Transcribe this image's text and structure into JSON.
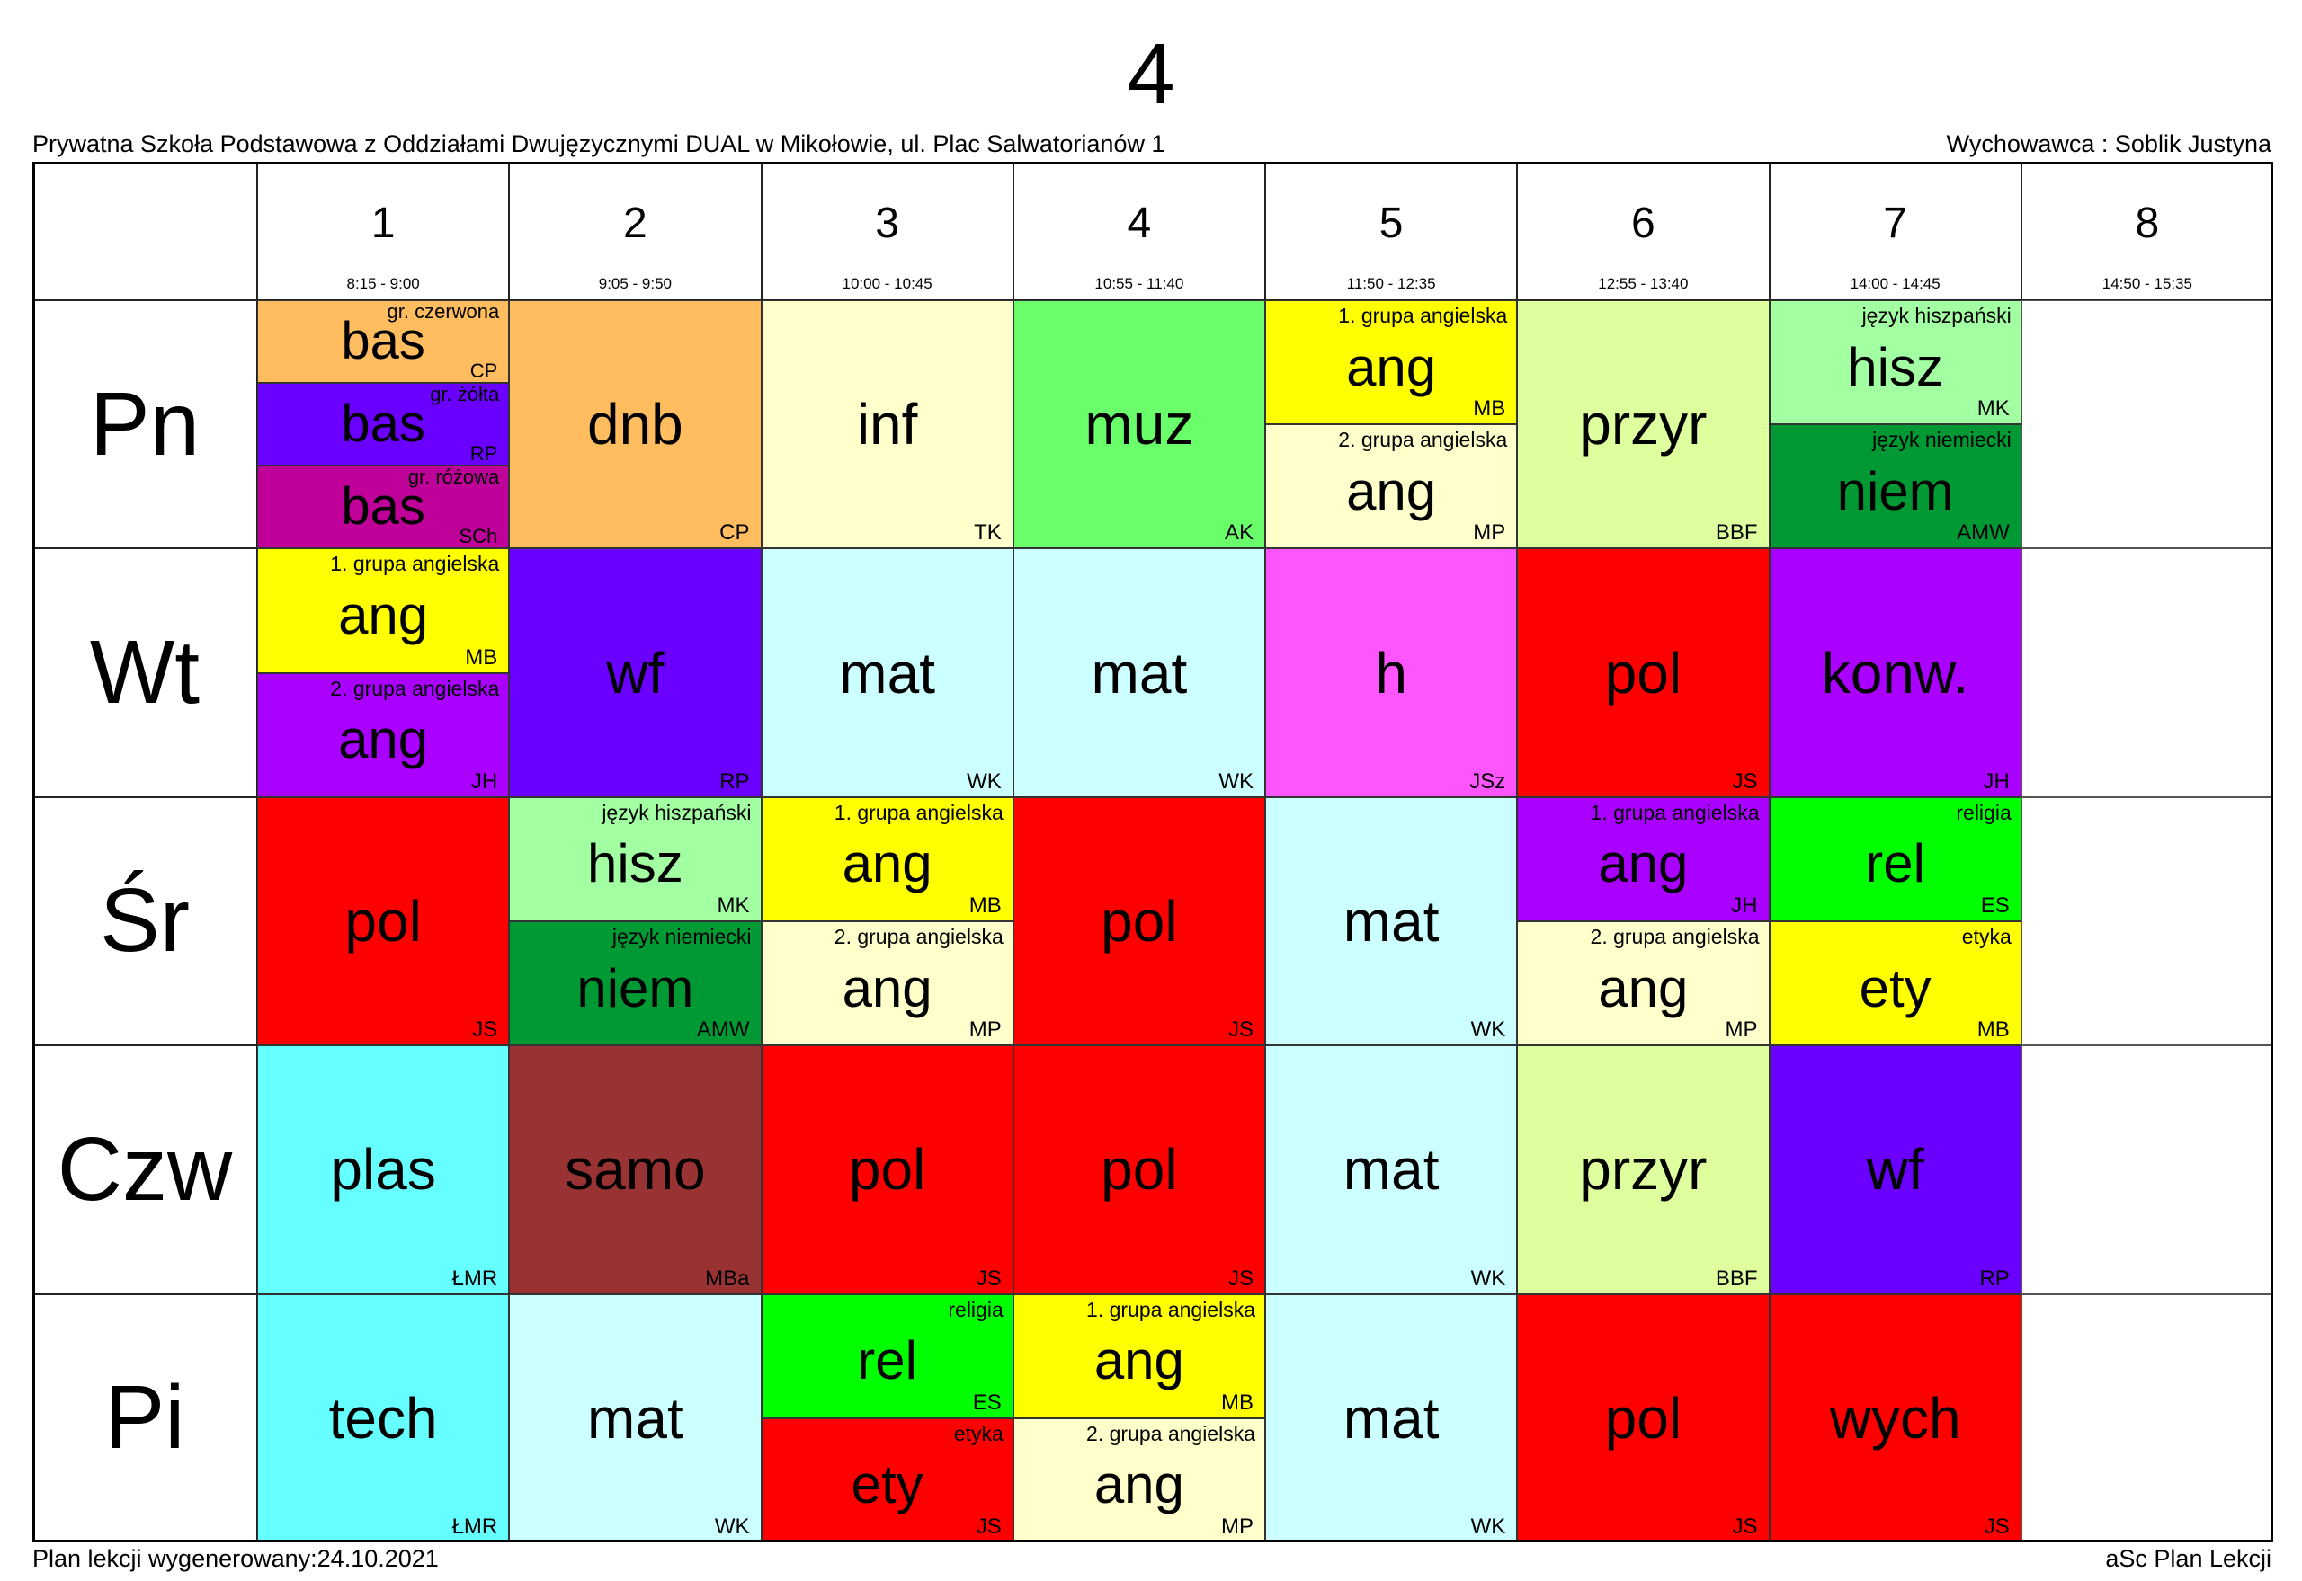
{
  "title": "4",
  "school": "Prywatna Szkoła Podstawowa z Oddziałami Dwujęzycznymi DUAL w Mikołowie, ul. Plac Salwatorianów 1",
  "tutor": "Wychowawca : Soblik Justyna",
  "footer_left": "Plan lekcji wygenerowany:24.10.2021",
  "footer_right": "aSc Plan Lekcji",
  "periods": [
    {
      "num": "1",
      "time": "8:15 - 9:00"
    },
    {
      "num": "2",
      "time": "9:05 - 9:50"
    },
    {
      "num": "3",
      "time": "10:00 - 10:45"
    },
    {
      "num": "4",
      "time": "10:55 - 11:40"
    },
    {
      "num": "5",
      "time": "11:50 - 12:35"
    },
    {
      "num": "6",
      "time": "12:55 - 13:40"
    },
    {
      "num": "7",
      "time": "14:00 - 14:45"
    },
    {
      "num": "8",
      "time": "14:50 - 15:35"
    }
  ],
  "days": [
    {
      "name": "Pn",
      "cells": [
        [
          {
            "subject": "bas",
            "teacher": "CP",
            "group": "gr. czerwona",
            "color": "#FFBD5F"
          },
          {
            "subject": "bas",
            "teacher": "RP",
            "group": "gr. żółta",
            "color": "#6A00FF"
          },
          {
            "subject": "bas",
            "teacher": "SCh",
            "group": "gr. różowa",
            "color": "#BF0099"
          }
        ],
        [
          {
            "subject": "dnb",
            "teacher": "CP",
            "color": "#FFBD5F"
          }
        ],
        [
          {
            "subject": "inf",
            "teacher": "TK",
            "color": "#FFFFCC"
          }
        ],
        [
          {
            "subject": "muz",
            "teacher": "AK",
            "color": "#6AFF6A"
          }
        ],
        [
          {
            "subject": "ang",
            "teacher": "MB",
            "group": "1. grupa angielska",
            "color": "#FFFF00"
          },
          {
            "subject": "ang",
            "teacher": "MP",
            "group": "2. grupa angielska",
            "color": "#FFFFCC"
          }
        ],
        [
          {
            "subject": "przyr",
            "teacher": "BBF",
            "color": "#DEFF9E"
          }
        ],
        [
          {
            "subject": "hisz",
            "teacher": "MK",
            "group": "język hiszpański",
            "color": "#A2FFA2"
          },
          {
            "subject": "niem",
            "teacher": "AMW",
            "group": "język niemiecki",
            "color": "#009933"
          }
        ],
        []
      ]
    },
    {
      "name": "Wt",
      "cells": [
        [
          {
            "subject": "ang",
            "teacher": "MB",
            "group": "1. grupa angielska",
            "color": "#FFFF00"
          },
          {
            "subject": "ang",
            "teacher": "JH",
            "group": "2. grupa angielska",
            "color": "#AA00FF"
          }
        ],
        [
          {
            "subject": "wf",
            "teacher": "RP",
            "color": "#6A00FF"
          }
        ],
        [
          {
            "subject": "mat",
            "teacher": "WK",
            "color": "#CCFFFF"
          }
        ],
        [
          {
            "subject": "mat",
            "teacher": "WK",
            "color": "#CCFFFF"
          }
        ],
        [
          {
            "subject": "h",
            "teacher": "JSz",
            "color": "#FF55FF"
          }
        ],
        [
          {
            "subject": "pol",
            "teacher": "JS",
            "color": "#FF0000"
          }
        ],
        [
          {
            "subject": "konw.",
            "teacher": "JH",
            "color": "#AA00FF"
          }
        ],
        []
      ]
    },
    {
      "name": "Śr",
      "cells": [
        [
          {
            "subject": "pol",
            "teacher": "JS",
            "color": "#FF0000"
          }
        ],
        [
          {
            "subject": "hisz",
            "teacher": "MK",
            "group": "język hiszpański",
            "color": "#A2FFA2"
          },
          {
            "subject": "niem",
            "teacher": "AMW",
            "group": "język niemiecki",
            "color": "#009933"
          }
        ],
        [
          {
            "subject": "ang",
            "teacher": "MB",
            "group": "1. grupa angielska",
            "color": "#FFFF00"
          },
          {
            "subject": "ang",
            "teacher": "MP",
            "group": "2. grupa angielska",
            "color": "#FFFFCC"
          }
        ],
        [
          {
            "subject": "pol",
            "teacher": "JS",
            "color": "#FF0000"
          }
        ],
        [
          {
            "subject": "mat",
            "teacher": "WK",
            "color": "#CCFFFF"
          }
        ],
        [
          {
            "subject": "ang",
            "teacher": "JH",
            "group": "1. grupa angielska",
            "color": "#AA00FF"
          },
          {
            "subject": "ang",
            "teacher": "MP",
            "group": "2. grupa angielska",
            "color": "#FFFFCC"
          }
        ],
        [
          {
            "subject": "rel",
            "teacher": "ES",
            "group": "religia",
            "color": "#00FF00"
          },
          {
            "subject": "ety",
            "teacher": "MB",
            "group": "etyka",
            "color": "#FFFF00"
          }
        ],
        []
      ]
    },
    {
      "name": "Czw",
      "cells": [
        [
          {
            "subject": "plas",
            "teacher": "ŁMR",
            "color": "#66FFFF"
          }
        ],
        [
          {
            "subject": "samo",
            "teacher": "MBa",
            "color": "#993333"
          }
        ],
        [
          {
            "subject": "pol",
            "teacher": "JS",
            "color": "#FF0000"
          }
        ],
        [
          {
            "subject": "pol",
            "teacher": "JS",
            "color": "#FF0000"
          }
        ],
        [
          {
            "subject": "mat",
            "teacher": "WK",
            "color": "#CCFFFF"
          }
        ],
        [
          {
            "subject": "przyr",
            "teacher": "BBF",
            "color": "#DEFF9E"
          }
        ],
        [
          {
            "subject": "wf",
            "teacher": "RP",
            "color": "#6A00FF"
          }
        ],
        []
      ]
    },
    {
      "name": "Pi",
      "cells": [
        [
          {
            "subject": "tech",
            "teacher": "ŁMR",
            "color": "#66FFFF"
          }
        ],
        [
          {
            "subject": "mat",
            "teacher": "WK",
            "color": "#CCFFFF"
          }
        ],
        [
          {
            "subject": "rel",
            "teacher": "ES",
            "group": "religia",
            "color": "#00FF00"
          },
          {
            "subject": "ety",
            "teacher": "JS",
            "group": "etyka",
            "color": "#FF0000"
          }
        ],
        [
          {
            "subject": "ang",
            "teacher": "MB",
            "group": "1. grupa angielska",
            "color": "#FFFF00"
          },
          {
            "subject": "ang",
            "teacher": "MP",
            "group": "2. grupa angielska",
            "color": "#FFFFCC"
          }
        ],
        [
          {
            "subject": "mat",
            "teacher": "WK",
            "color": "#CCFFFF"
          }
        ],
        [
          {
            "subject": "pol",
            "teacher": "JS",
            "color": "#FF0000"
          }
        ],
        [
          {
            "subject": "wych",
            "teacher": "JS",
            "color": "#FF0000"
          }
        ],
        []
      ]
    }
  ]
}
